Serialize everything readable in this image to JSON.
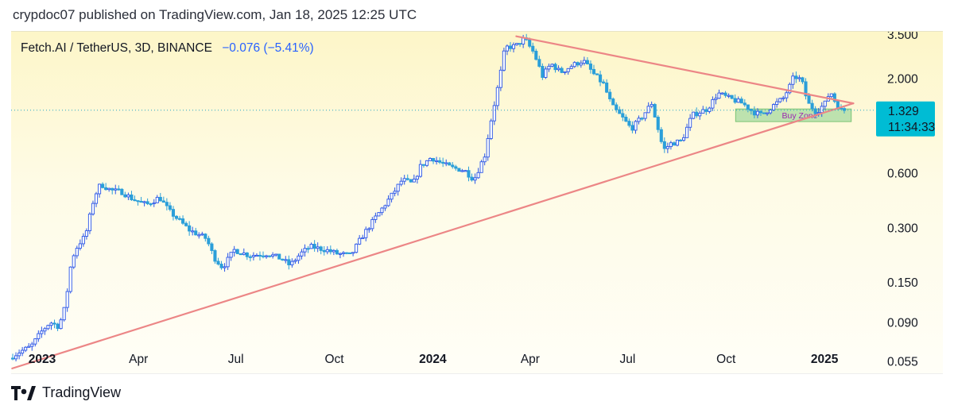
{
  "header": {
    "text": "crypdoc07 published on TradingView.com, Jan 18, 2025 12:25 UTC"
  },
  "legend": {
    "symbol": "Fetch.AI / TetherUS, 3D, BINANCE",
    "change": "−0.076 (−5.41%)"
  },
  "footer": {
    "brand": "TradingView",
    "logo_icon": "tradingview-logo-icon"
  },
  "colors": {
    "up": "#2a55e8",
    "down": "#2b9fd9",
    "trendline": "#ec8686",
    "price_label_bg": "#00bcd4",
    "buy_zone_fill": "#a7d9a0",
    "buy_zone_text": "#9c27b0"
  },
  "chart_data": {
    "type": "candlestick",
    "title": "Fetch.AI / TetherUS, 3D, BINANCE",
    "y_scale": "log",
    "ylim": [
      0.047,
      3.6
    ],
    "xlim": [
      "2022-12-03",
      "2025-02-16"
    ],
    "y_ticks": [
      "3.500",
      "2.000",
      "0.600",
      "0.300",
      "0.150",
      "0.090",
      "0.055"
    ],
    "x_ticks": [
      {
        "label": "2023",
        "date": "2023-01-01",
        "bold": true
      },
      {
        "label": "Apr",
        "date": "2023-04-01",
        "bold": false
      },
      {
        "label": "Jul",
        "date": "2023-07-01",
        "bold": false
      },
      {
        "label": "Oct",
        "date": "2023-10-01",
        "bold": false
      },
      {
        "label": "2024",
        "date": "2024-01-01",
        "bold": true
      },
      {
        "label": "Apr",
        "date": "2024-04-01",
        "bold": false
      },
      {
        "label": "Jul",
        "date": "2024-07-01",
        "bold": false
      },
      {
        "label": "Oct",
        "date": "2024-10-01",
        "bold": false
      },
      {
        "label": "2025",
        "date": "2025-01-01",
        "bold": true
      }
    ],
    "last_price": "1.329",
    "countdown": "11:34:33",
    "price_series": [
      [
        "2022-12-03",
        0.057
      ],
      [
        "2022-12-13",
        0.062
      ],
      [
        "2022-12-23",
        0.066
      ],
      [
        "2023-01-02",
        0.08
      ],
      [
        "2023-01-10",
        0.09
      ],
      [
        "2023-01-18",
        0.085
      ],
      [
        "2023-01-24",
        0.11
      ],
      [
        "2023-01-30",
        0.2
      ],
      [
        "2023-02-05",
        0.24
      ],
      [
        "2023-02-12",
        0.27
      ],
      [
        "2023-02-20",
        0.44
      ],
      [
        "2023-02-26",
        0.52
      ],
      [
        "2023-03-08",
        0.48
      ],
      [
        "2023-03-18",
        0.47
      ],
      [
        "2023-03-28",
        0.43
      ],
      [
        "2023-04-10",
        0.4
      ],
      [
        "2023-04-22",
        0.44
      ],
      [
        "2023-05-01",
        0.37
      ],
      [
        "2023-05-20",
        0.29
      ],
      [
        "2023-06-05",
        0.26
      ],
      [
        "2023-06-12",
        0.205
      ],
      [
        "2023-06-20",
        0.18
      ],
      [
        "2023-07-01",
        0.225
      ],
      [
        "2023-07-15",
        0.21
      ],
      [
        "2023-08-01",
        0.215
      ],
      [
        "2023-08-15",
        0.2
      ],
      [
        "2023-08-22",
        0.185
      ],
      [
        "2023-09-01",
        0.215
      ],
      [
        "2023-09-10",
        0.235
      ],
      [
        "2023-09-25",
        0.225
      ],
      [
        "2023-10-05",
        0.215
      ],
      [
        "2023-10-18",
        0.21
      ],
      [
        "2023-10-28",
        0.265
      ],
      [
        "2023-11-10",
        0.34
      ],
      [
        "2023-11-25",
        0.45
      ],
      [
        "2023-12-05",
        0.55
      ],
      [
        "2023-12-15",
        0.52
      ],
      [
        "2023-12-22",
        0.65
      ],
      [
        "2024-01-01",
        0.73
      ],
      [
        "2024-01-10",
        0.68
      ],
      [
        "2024-01-20",
        0.64
      ],
      [
        "2024-02-01",
        0.62
      ],
      [
        "2024-02-10",
        0.55
      ],
      [
        "2024-02-20",
        0.75
      ],
      [
        "2024-02-25",
        1.1
      ],
      [
        "2024-03-05",
        2.0
      ],
      [
        "2024-03-10",
        2.95
      ],
      [
        "2024-03-20",
        3.0
      ],
      [
        "2024-03-28",
        3.3
      ],
      [
        "2024-04-06",
        2.75
      ],
      [
        "2024-04-14",
        2.05
      ],
      [
        "2024-04-22",
        2.4
      ],
      [
        "2024-05-01",
        2.15
      ],
      [
        "2024-05-12",
        2.35
      ],
      [
        "2024-05-22",
        2.5
      ],
      [
        "2024-06-01",
        2.1
      ],
      [
        "2024-06-10",
        1.85
      ],
      [
        "2024-06-18",
        1.4
      ],
      [
        "2024-06-28",
        1.2
      ],
      [
        "2024-07-06",
        1.05
      ],
      [
        "2024-07-15",
        1.2
      ],
      [
        "2024-07-25",
        1.45
      ],
      [
        "2024-08-05",
        0.8
      ],
      [
        "2024-08-12",
        0.87
      ],
      [
        "2024-08-22",
        0.9
      ],
      [
        "2024-09-01",
        1.25
      ],
      [
        "2024-09-15",
        1.35
      ],
      [
        "2024-09-25",
        1.65
      ],
      [
        "2024-10-05",
        1.55
      ],
      [
        "2024-10-18",
        1.45
      ],
      [
        "2024-10-28",
        1.3
      ],
      [
        "2024-11-05",
        1.25
      ],
      [
        "2024-11-15",
        1.4
      ],
      [
        "2024-11-25",
        1.55
      ],
      [
        "2024-12-01",
        1.8
      ],
      [
        "2024-12-05",
        2.05
      ],
      [
        "2024-12-12",
        1.95
      ],
      [
        "2024-12-18",
        1.45
      ],
      [
        "2024-12-26",
        1.3
      ],
      [
        "2025-01-03",
        1.45
      ],
      [
        "2025-01-08",
        1.7
      ],
      [
        "2025-01-12",
        1.5
      ],
      [
        "2025-01-18",
        1.33
      ]
    ],
    "trendlines": [
      {
        "from": [
          "2022-12-04",
          0.05
        ],
        "to": [
          "2025-01-28",
          1.45
        ]
      },
      {
        "from": [
          "2024-03-19",
          3.4
        ],
        "to": [
          "2025-01-28",
          1.45
        ]
      }
    ],
    "zones": [
      {
        "label": "Buy Zone",
        "x": [
          "2024-10-10",
          "2025-01-26"
        ],
        "y": [
          1.15,
          1.35
        ]
      }
    ]
  }
}
